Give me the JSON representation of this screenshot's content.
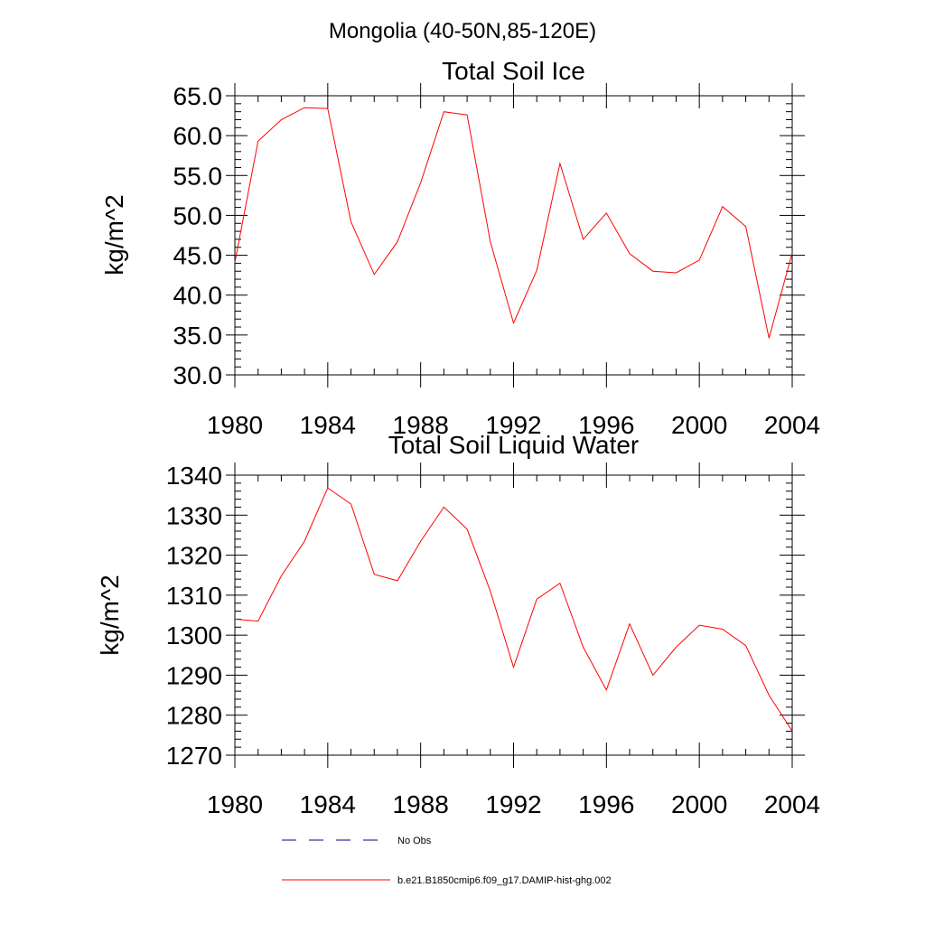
{
  "main_title": "Mongolia (40-50N,85-120E)",
  "legend": [
    {
      "label": "No Obs",
      "color": "#000080",
      "style": "dashed"
    },
    {
      "label": "b.e21.B1850cmip6.f09_g17.DAMIP-hist-ghg.002",
      "color": "#ff0000",
      "style": "solid"
    }
  ],
  "chart_data": [
    {
      "type": "line",
      "title": "Total Soil Ice",
      "ylabel": "kg/m^2",
      "xlabel": "",
      "xlim": [
        1980,
        2004
      ],
      "ylim": [
        30,
        65
      ],
      "xticks": [
        1980,
        1984,
        1988,
        1992,
        1996,
        2000,
        2004
      ],
      "xtick_labels": [
        "1980",
        "1984",
        "1988",
        "1992",
        "1996",
        "2000",
        "2004"
      ],
      "yticks": [
        30,
        35,
        40,
        45,
        50,
        55,
        60,
        65
      ],
      "ytick_labels": [
        "30.0",
        "35.0",
        "40.0",
        "45.0",
        "50.0",
        "55.0",
        "60.0",
        "65.0"
      ],
      "grid": false,
      "x": [
        1980,
        1981,
        1982,
        1983,
        1984,
        1985,
        1986,
        1987,
        1988,
        1989,
        1990,
        1991,
        1992,
        1993,
        1994,
        1995,
        1996,
        1997,
        1998,
        1999,
        2000,
        2001,
        2002,
        2003,
        2004
      ],
      "series": [
        {
          "name": "b.e21.B1850cmip6.f09_g17.DAMIP-hist-ghg.002",
          "color": "#ff0000",
          "values": [
            44.1,
            59.3,
            62.0,
            63.5,
            63.4,
            49.2,
            42.6,
            46.7,
            54.1,
            63.0,
            62.6,
            46.7,
            36.5,
            43.1,
            56.5,
            47.0,
            50.3,
            45.2,
            43.0,
            42.8,
            44.4,
            51.1,
            48.6,
            34.6,
            45.3
          ]
        }
      ]
    },
    {
      "type": "line",
      "title": "Total Soil Liquid Water",
      "ylabel": "kg/m^2",
      "xlabel": "",
      "xlim": [
        1980,
        2004
      ],
      "ylim": [
        1270,
        1340
      ],
      "xticks": [
        1980,
        1984,
        1988,
        1992,
        1996,
        2000,
        2004
      ],
      "xtick_labels": [
        "1980",
        "1984",
        "1988",
        "1992",
        "1996",
        "2000",
        "2004"
      ],
      "yticks": [
        1270,
        1280,
        1290,
        1300,
        1310,
        1320,
        1330,
        1340
      ],
      "ytick_labels": [
        "1270",
        "1280",
        "1290",
        "1300",
        "1310",
        "1320",
        "1330",
        "1340"
      ],
      "grid": false,
      "x": [
        1980,
        1981,
        1982,
        1983,
        1984,
        1985,
        1986,
        1987,
        1988,
        1989,
        1990,
        1991,
        1992,
        1993,
        1994,
        1995,
        1996,
        1997,
        1998,
        1999,
        2000,
        2001,
        2002,
        2003,
        2004
      ],
      "series": [
        {
          "name": "b.e21.B1850cmip6.f09_g17.DAMIP-hist-ghg.002",
          "color": "#ff0000",
          "values": [
            1304.0,
            1303.5,
            1314.8,
            1323.5,
            1336.8,
            1332.8,
            1315.2,
            1313.6,
            1323.5,
            1332.0,
            1326.5,
            1311.0,
            1292.0,
            1309.0,
            1313.0,
            1297.0,
            1286.3,
            1302.8,
            1290.0,
            1297.0,
            1302.5,
            1301.5,
            1297.4,
            1285.0,
            1276.0
          ]
        }
      ]
    }
  ]
}
